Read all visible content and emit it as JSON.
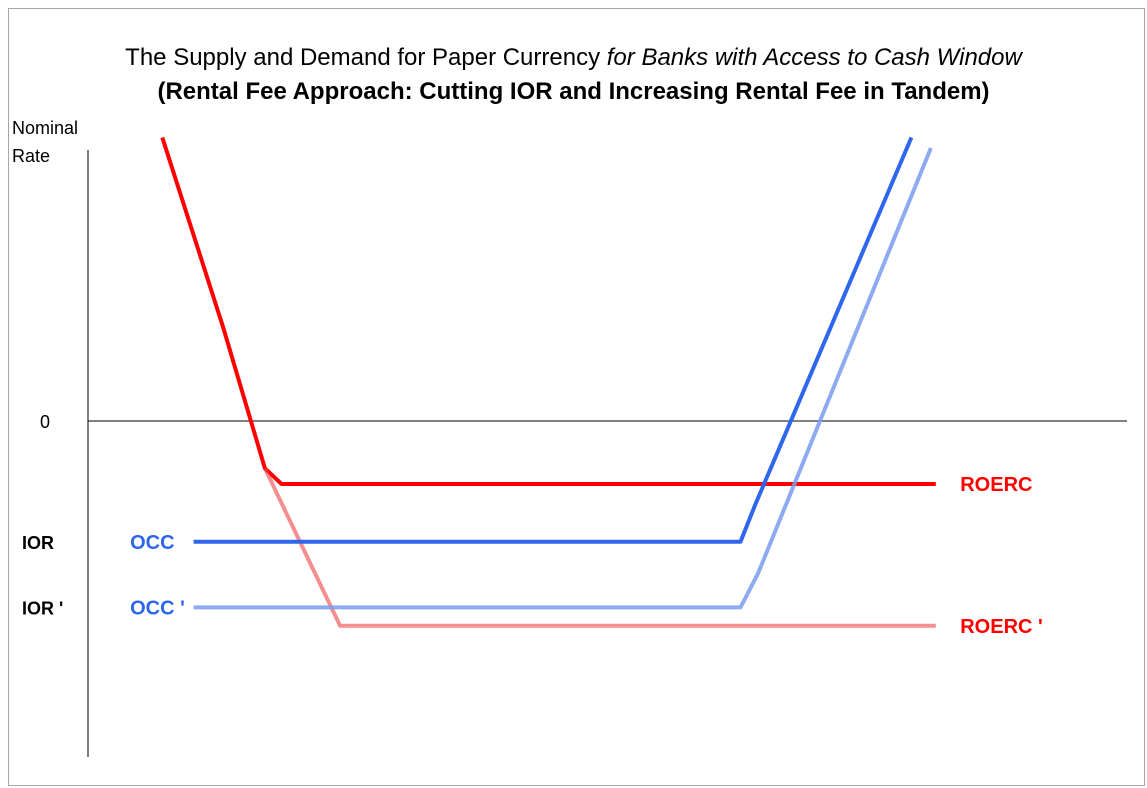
{
  "chart_data": {
    "type": "line",
    "title": "The Supply and Demand for Paper Currency",
    "title_italic": "for Banks with Access to Cash Window",
    "subtitle": "(Rental Fee Approach: Cutting IOR and Increasing Rental Fee in Tandem)",
    "ylabel_line1": "Nominal",
    "ylabel_line2": "Rate",
    "xlabel": "",
    "y_tick_labels": [
      {
        "label": "0",
        "y": 0,
        "bold": false
      },
      {
        "label": "IOR",
        "y": -2.3,
        "bold": true
      },
      {
        "label": "IOR '",
        "y": -3.55,
        "bold": true
      }
    ],
    "xlim": [
      0,
      100
    ],
    "ylim": [
      -6.5,
      5.4
    ],
    "grid": false,
    "legend": "none",
    "series": [
      {
        "name": "ROERC",
        "color": "#ff0000",
        "opacity": 1.0,
        "label_at": {
          "x": 87.5,
          "y": -1.2
        },
        "points": [
          [
            5.8,
            5.4
          ],
          [
            12,
            1.8
          ],
          [
            16.3,
            -0.9
          ],
          [
            18,
            -1.2
          ],
          [
            85,
            -1.2
          ]
        ]
      },
      {
        "name": "ROERC '",
        "color": "#ee4444",
        "opacity": 0.6,
        "label_at": {
          "x": 87.5,
          "y": -3.9
        },
        "points": [
          [
            16.3,
            -0.9
          ],
          [
            24,
            -3.9
          ],
          [
            85,
            -3.9
          ]
        ]
      },
      {
        "name": "OCC",
        "color": "#2f66ee",
        "opacity": 1.0,
        "label_at": {
          "x": 2.5,
          "y": -2.3
        },
        "points": [
          [
            9,
            -2.3
          ],
          [
            65,
            -2.3
          ],
          [
            66.5,
            -1.6
          ],
          [
            82.5,
            5.4
          ]
        ]
      },
      {
        "name": "OCC '",
        "color": "#7a9cf0",
        "opacity": 0.85,
        "label_at": {
          "x": 2.5,
          "y": -3.55
        },
        "points": [
          [
            9,
            -3.55
          ],
          [
            65,
            -3.55
          ],
          [
            66.8,
            -2.9
          ],
          [
            84.5,
            5.2
          ]
        ]
      }
    ]
  }
}
